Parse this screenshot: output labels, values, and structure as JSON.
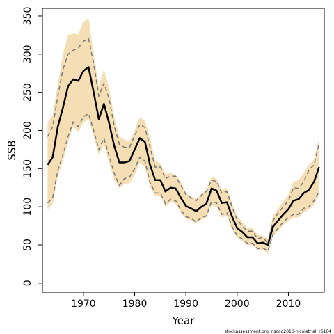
{
  "chart_data": {
    "type": "line",
    "xlabel": "Year",
    "ylabel": "SSB",
    "xlim": [
      1962,
      2017
    ],
    "ylim": [
      -12,
      360
    ],
    "x_ticks": [
      1970,
      1980,
      1990,
      2000,
      2010
    ],
    "y_ticks": [
      0,
      50,
      100,
      150,
      200,
      250,
      300,
      350
    ],
    "footnote": "stockassessment.org, nscod2016-nicolatrial, r6164",
    "colors": {
      "band": "#f5deb3",
      "estimate": "#000000",
      "dashed": "#777777"
    },
    "x": [
      1963,
      1964,
      1965,
      1966,
      1967,
      1968,
      1969,
      1970,
      1971,
      1972,
      1973,
      1974,
      1975,
      1976,
      1977,
      1978,
      1979,
      1980,
      1981,
      1982,
      1983,
      1984,
      1985,
      1986,
      1987,
      1988,
      1989,
      1990,
      1991,
      1992,
      1993,
      1994,
      1995,
      1996,
      1997,
      1998,
      1999,
      2000,
      2001,
      2002,
      2003,
      2004,
      2005,
      2006,
      2007,
      2008,
      2009,
      2010,
      2011,
      2012,
      2013,
      2014,
      2015,
      2016
    ],
    "series": [
      {
        "role": "estimate",
        "values": [
          155,
          165,
          205,
          230,
          258,
          267,
          265,
          278,
          283,
          250,
          215,
          235,
          210,
          180,
          158,
          158,
          160,
          175,
          190,
          185,
          155,
          135,
          135,
          120,
          125,
          124,
          112,
          101,
          98,
          94,
          100,
          104,
          124,
          121,
          105,
          106,
          87,
          72,
          67,
          60,
          60,
          52,
          53,
          50,
          74,
          82,
          90,
          97,
          108,
          110,
          118,
          122,
          133,
          152
        ]
      },
      {
        "role": "upper-dashed",
        "values": [
          192,
          205,
          245,
          280,
          300,
          305,
          308,
          317,
          320,
          288,
          245,
          262,
          242,
          206,
          182,
          178,
          178,
          193,
          208,
          204,
          178,
          152,
          152,
          137,
          140,
          140,
          128,
          116,
          112,
          108,
          115,
          120,
          135,
          133,
          118,
          120,
          100,
          83,
          75,
          68,
          68,
          58,
          60,
          52,
          82,
          92,
          100,
          108,
          125,
          124,
          133,
          148,
          155,
          183
        ]
      },
      {
        "role": "lower-dashed",
        "values": [
          105,
          112,
          148,
          168,
          192,
          211,
          205,
          218,
          222,
          200,
          175,
          190,
          167,
          144,
          128,
          137,
          139,
          150,
          165,
          160,
          132,
          118,
          118,
          104,
          110,
          108,
          96,
          87,
          85,
          80,
          86,
          88,
          107,
          105,
          90,
          92,
          74,
          62,
          58,
          52,
          52,
          45,
          46,
          42,
          64,
          72,
          80,
          86,
          90,
          90,
          98,
          100,
          108,
          120
        ]
      },
      {
        "role": "band-upper",
        "values": [
          210,
          220,
          260,
          300,
          325,
          327,
          326,
          342,
          347,
          300,
          258,
          280,
          255,
          218,
          192,
          188,
          186,
          200,
          217,
          213,
          190,
          160,
          157,
          143,
          144,
          142,
          133,
          118,
          113,
          110,
          117,
          122,
          140,
          136,
          122,
          124,
          104,
          88,
          80,
          72,
          72,
          63,
          62,
          58,
          88,
          98,
          107,
          116,
          133,
          135,
          144,
          155,
          162,
          190
        ]
      },
      {
        "role": "band-lower",
        "values": [
          96,
          104,
          140,
          160,
          185,
          205,
          198,
          210,
          215,
          193,
          168,
          182,
          158,
          136,
          124,
          130,
          131,
          142,
          158,
          152,
          126,
          114,
          114,
          100,
          106,
          104,
          92,
          84,
          82,
          78,
          83,
          85,
          102,
          100,
          86,
          88,
          70,
          60,
          55,
          50,
          50,
          43,
          44,
          39,
          61,
          69,
          76,
          82,
          86,
          86,
          93,
          96,
          103,
          115
        ]
      }
    ]
  }
}
